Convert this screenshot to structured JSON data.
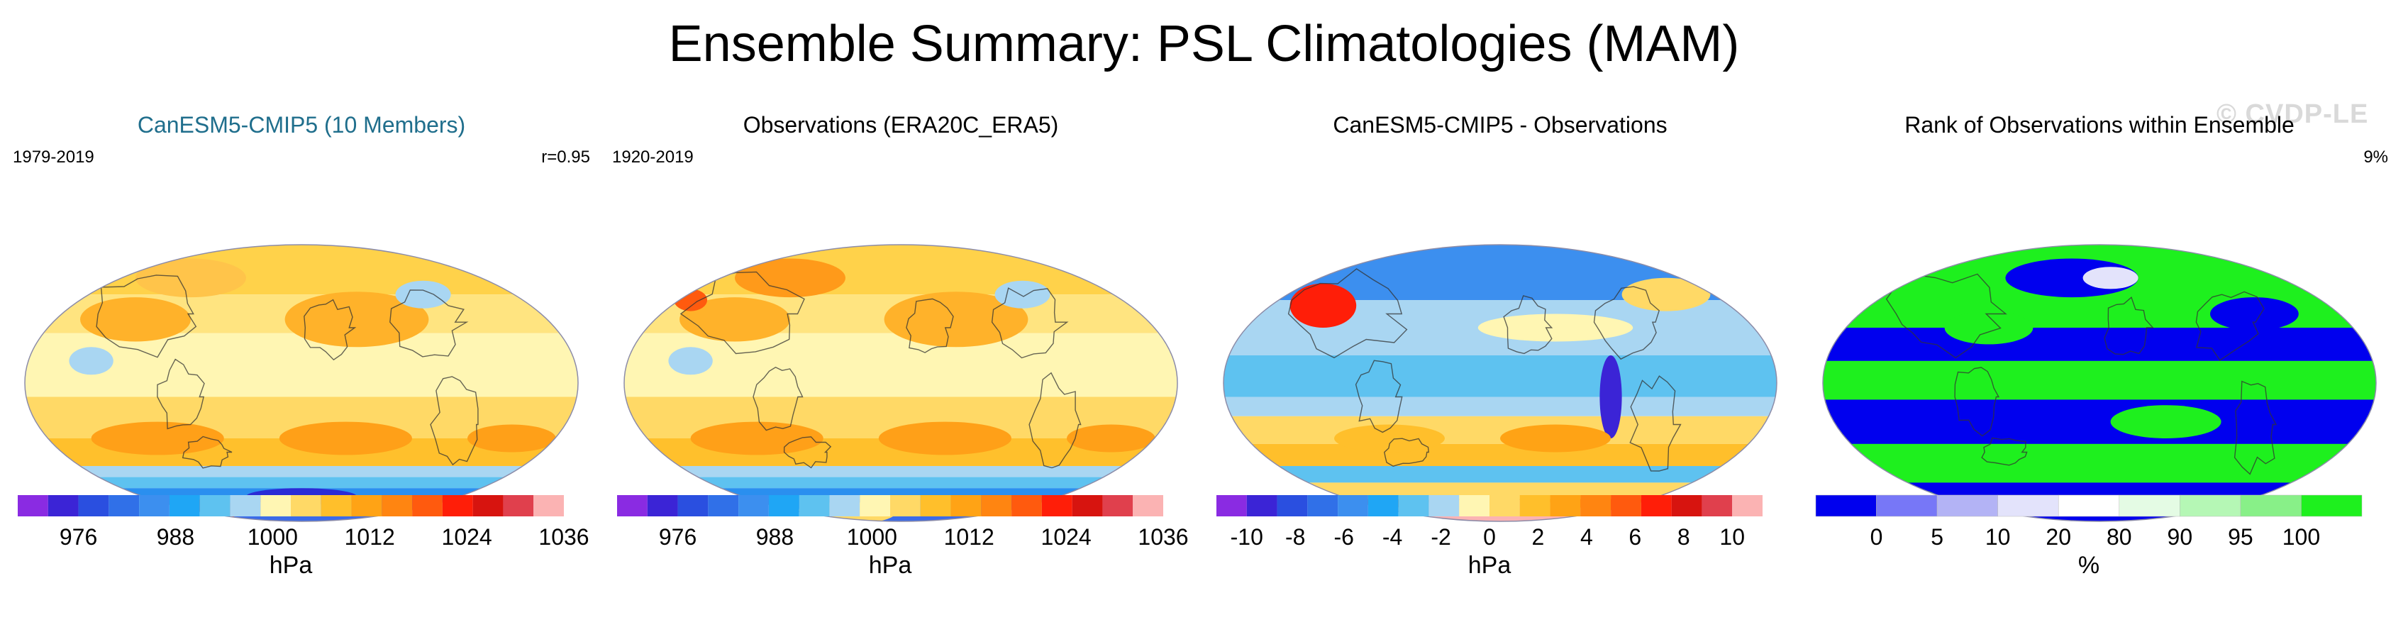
{
  "title": "Ensemble Summary: PSL Climatologies (MAM)",
  "watermark": "© CVDP-LE",
  "chart_data": [
    {
      "type": "heatmap",
      "title": "CanESM5-CMIP5 (10 Members)",
      "title_color": "#1f6e8c",
      "left_label": "1979-2019",
      "right_label": "r=0.95",
      "colorbar": {
        "label": "hPa",
        "ticks": [
          "976",
          "988",
          "1000",
          "1012",
          "1024",
          "1036"
        ],
        "colors": [
          "#8a2be2",
          "#3b24d6",
          "#2a4fe0",
          "#3070e8",
          "#3c8fef",
          "#1fa6f5",
          "#5ec2f0",
          "#a9d6f2",
          "#fff6b3",
          "#ffd966",
          "#ffbf2b",
          "#ffa315",
          "#ff8511",
          "#ff5a0e",
          "#ff1e08",
          "#d7140f",
          "#e0404d",
          "#fbb3b3"
        ]
      }
    },
    {
      "type": "heatmap",
      "title": "Observations (ERA20C_ERA5)",
      "title_color": "#000000",
      "left_label": "1920-2019",
      "right_label": "",
      "colorbar": {
        "label": "hPa",
        "ticks": [
          "976",
          "988",
          "1000",
          "1012",
          "1024",
          "1036"
        ],
        "colors": [
          "#8a2be2",
          "#3b24d6",
          "#2a4fe0",
          "#3070e8",
          "#3c8fef",
          "#1fa6f5",
          "#5ec2f0",
          "#a9d6f2",
          "#fff6b3",
          "#ffd966",
          "#ffbf2b",
          "#ffa315",
          "#ff8511",
          "#ff5a0e",
          "#ff1e08",
          "#d7140f",
          "#e0404d",
          "#fbb3b3"
        ]
      }
    },
    {
      "type": "heatmap",
      "title": "CanESM5-CMIP5 - Observations",
      "title_color": "#000000",
      "left_label": "",
      "right_label": "",
      "colorbar": {
        "label": "hPa",
        "ticks": [
          "-10",
          "-8",
          "-6",
          "-4",
          "-2",
          "0",
          "2",
          "4",
          "6",
          "8",
          "10"
        ],
        "colors": [
          "#8a2be2",
          "#3b24d6",
          "#2a4fe0",
          "#3070e8",
          "#3c8fef",
          "#1fa6f5",
          "#5ec2f0",
          "#a9d6f2",
          "#fff6b3",
          "#ffd966",
          "#ffbf2b",
          "#ffa315",
          "#ff8511",
          "#ff5a0e",
          "#ff1e08",
          "#d7140f",
          "#e0404d",
          "#fbb3b3"
        ]
      }
    },
    {
      "type": "heatmap",
      "title": "Rank of Observations within Ensemble",
      "title_color": "#000000",
      "left_label": "",
      "right_label": "9%",
      "colorbar": {
        "label": "%",
        "ticks": [
          "0",
          "5",
          "10",
          "20",
          "80",
          "90",
          "95",
          "100"
        ],
        "colors": [
          "#0000ee",
          "#7777f7",
          "#b3b3f5",
          "#e3e3fb",
          "#ffffff",
          "#e4fbe4",
          "#b5f7b5",
          "#88f088",
          "#1ef01e"
        ]
      }
    }
  ]
}
